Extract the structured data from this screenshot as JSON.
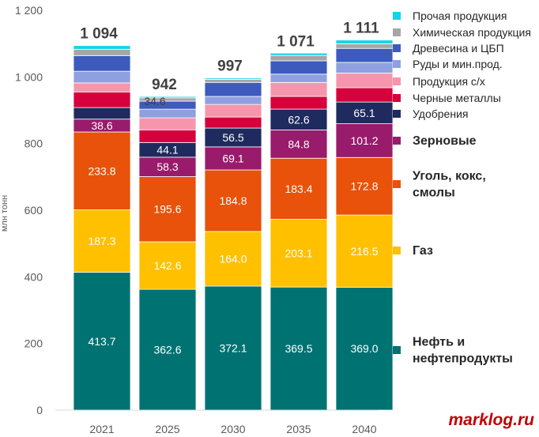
{
  "chart_data": {
    "type": "bar",
    "stacked": true,
    "ylabel": "млн тонн",
    "ylim": [
      0,
      1200
    ],
    "yticks": [
      0,
      200,
      400,
      600,
      800,
      1000,
      1200
    ],
    "ytick_labels": [
      "0",
      "200",
      "400",
      "600",
      "800",
      "1 000",
      "1 200"
    ],
    "categories": [
      "2021",
      "2025",
      "2030",
      "2035",
      "2040"
    ],
    "totals": [
      1094,
      942,
      997,
      1071,
      1111
    ],
    "total_labels": [
      "1 094",
      "942",
      "997",
      "1 071",
      "1 111"
    ],
    "legend_position": "right",
    "grid": false,
    "series": [
      {
        "name": "Нефть и нефтепродукты",
        "color": "#007272",
        "values": [
          413.7,
          362.6,
          372.1,
          369.5,
          369.0
        ],
        "labels": [
          "413.7",
          "362.6",
          "372.1",
          "369.5",
          "369.0"
        ]
      },
      {
        "name": "Газ",
        "color": "#ffc000",
        "values": [
          187.3,
          142.6,
          164.0,
          203.1,
          216.5
        ],
        "labels": [
          "187.3",
          "142.6",
          "164.0",
          "203.1",
          "216.5"
        ]
      },
      {
        "name": "Уголь, кокс, смолы",
        "color": "#e8520a",
        "values": [
          233.8,
          195.6,
          184.8,
          183.4,
          172.8
        ],
        "labels": [
          "233.8",
          "195.6",
          "184.8",
          "183.4",
          "172.8"
        ]
      },
      {
        "name": "Зерновые",
        "color": "#991b6b",
        "values": [
          38.6,
          58.3,
          69.1,
          84.8,
          101.2
        ],
        "labels": [
          "38.6",
          "58.3",
          "69.1",
          "84.8",
          "101.2"
        ]
      },
      {
        "name": "Удобрения",
        "color": "#1f2b5e",
        "values": [
          34.6,
          44.1,
          56.5,
          62.6,
          65.1
        ],
        "labels": [
          "34.6",
          "44.1",
          "56.5",
          "62.6",
          "65.1"
        ]
      },
      {
        "name": "Черные металлы",
        "color": "#d6003c",
        "values": [
          47,
          38,
          33,
          38,
          43
        ],
        "labels": []
      },
      {
        "name": "Продукция с/х",
        "color": "#f596ad",
        "values": [
          27,
          36,
          38,
          42,
          44
        ],
        "labels": []
      },
      {
        "name": "Руды и мин.прод.",
        "color": "#8ea0e0",
        "values": [
          35,
          26,
          24,
          25,
          32
        ],
        "labels": []
      },
      {
        "name": "Древесина и ЦБП",
        "color": "#3d5bbd",
        "values": [
          47,
          24,
          42,
          40,
          42
        ],
        "labels": []
      },
      {
        "name": "Химическая продукция",
        "color": "#a6a6a6",
        "values": [
          19,
          10,
          9,
          16,
          14
        ],
        "labels": []
      },
      {
        "name": "Прочая продукция",
        "color": "#13d4e8",
        "values": [
          11,
          4,
          4,
          7,
          11
        ],
        "labels": []
      }
    ]
  },
  "watermark": "marklog.ru"
}
